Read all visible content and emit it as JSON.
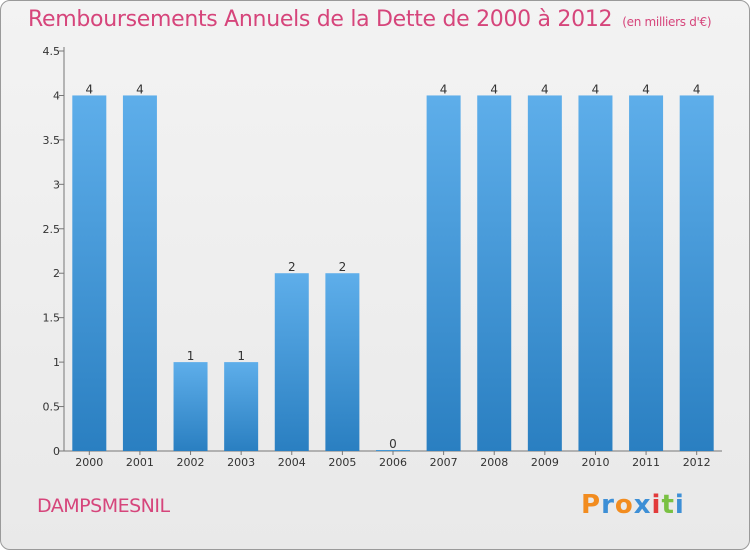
{
  "title": "Remboursements Annuels de la Dette de 2000 à 2012",
  "unit_note": "(en milliers d'€)",
  "commune": "DAMPSMESNIL",
  "logo": {
    "letters": [
      "P",
      "r",
      "o",
      "x",
      "i",
      "t",
      "i"
    ],
    "colors": [
      "#f28c1f",
      "#3d8fd6",
      "#f28c1f",
      "#3d8fd6",
      "#e23b3b",
      "#7ac143",
      "#3d8fd6"
    ]
  },
  "colors": {
    "bar_top": "#5eaeea",
    "bar_bottom": "#2a7fc1",
    "title": "#d6457b"
  },
  "chart_data": {
    "type": "bar",
    "categories": [
      "2000",
      "2001",
      "2002",
      "2003",
      "2004",
      "2005",
      "2006",
      "2007",
      "2008",
      "2009",
      "2010",
      "2011",
      "2012"
    ],
    "values": [
      4,
      4,
      1,
      1,
      2,
      2,
      0,
      4,
      4,
      4,
      4,
      4,
      4
    ],
    "value_labels": [
      "4",
      "4",
      "1",
      "1",
      "2",
      "2",
      "0",
      "4",
      "4",
      "4",
      "4",
      "4",
      "4"
    ],
    "y_ticks": [
      "0",
      "0.5",
      "1",
      "1.5",
      "2",
      "2.5",
      "3",
      "3.5",
      "4",
      "4.5"
    ],
    "ylim": [
      0,
      4.5
    ],
    "grid": false,
    "legend": "none"
  }
}
